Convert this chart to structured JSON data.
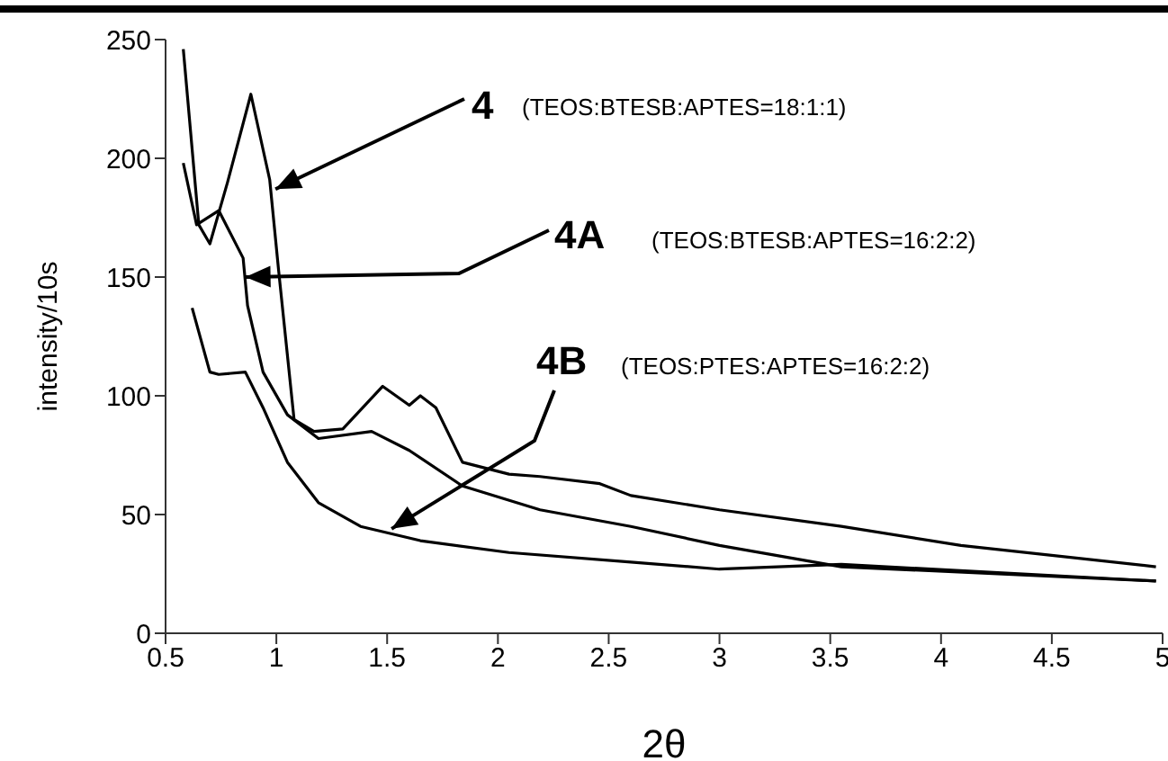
{
  "chart_data": {
    "type": "line",
    "xlabel": "2θ",
    "ylabel": "intensity/10s",
    "xlim": [
      0.5,
      5
    ],
    "xticks": [
      0.5,
      1,
      1.5,
      2,
      2.5,
      3,
      3.5,
      4,
      4.5,
      5
    ],
    "ylim": [
      0,
      250
    ],
    "yticks": [
      0,
      50,
      100,
      150,
      200,
      250
    ],
    "grid": false,
    "legend": false,
    "marker": "none",
    "line_style": "solid",
    "annotations": [
      {
        "text": "4",
        "x": 0.996,
        "y": 187
      },
      "(TEOS:BTESB:APTES=18:1:1)",
      {
        "text": "4A",
        "x": 0.86,
        "y": 150
      },
      "(TEOS:BTESB:APTES=16:2:2)",
      {
        "text": "4B",
        "x": 1.52,
        "y": 44
      },
      "(TEOS:PTES:APTES=16:2:2)"
    ],
    "series": [
      {
        "color": "#000000",
        "x": [
          0.58,
          0.65,
          0.7,
          0.78,
          0.885,
          0.97,
          1.01,
          1.08,
          1.17,
          1.3,
          1.48,
          1.6,
          1.65,
          1.72,
          1.84,
          2.05,
          2.19,
          2.46,
          2.6,
          3.0,
          3.55,
          4.09,
          4.97
        ],
        "values": [
          246,
          172,
          164,
          190,
          227,
          191,
          153,
          90,
          85,
          86,
          104,
          96,
          100,
          95,
          72,
          67,
          66,
          63,
          58,
          52,
          45,
          37,
          28
        ]
      },
      {
        "color": "#000000",
        "x": [
          0.58,
          0.64,
          0.74,
          0.85,
          0.87,
          0.94,
          1.05,
          1.19,
          1.43,
          1.6,
          1.84,
          2.19,
          2.6,
          3.0,
          3.55,
          4.97
        ],
        "values": [
          198,
          172,
          178,
          158,
          138,
          110,
          92,
          82,
          85,
          77,
          62,
          52,
          45,
          37,
          28,
          22
        ]
      },
      {
        "color": "#000000",
        "x": [
          0.62,
          0.7,
          0.74,
          0.86,
          0.94,
          1.05,
          1.19,
          1.38,
          1.65,
          2.05,
          2.6,
          3.0,
          3.55,
          4.97
        ],
        "values": [
          137,
          110,
          109,
          110,
          95,
          72,
          55,
          45,
          39,
          34,
          30,
          27,
          29,
          22
        ]
      }
    ]
  }
}
